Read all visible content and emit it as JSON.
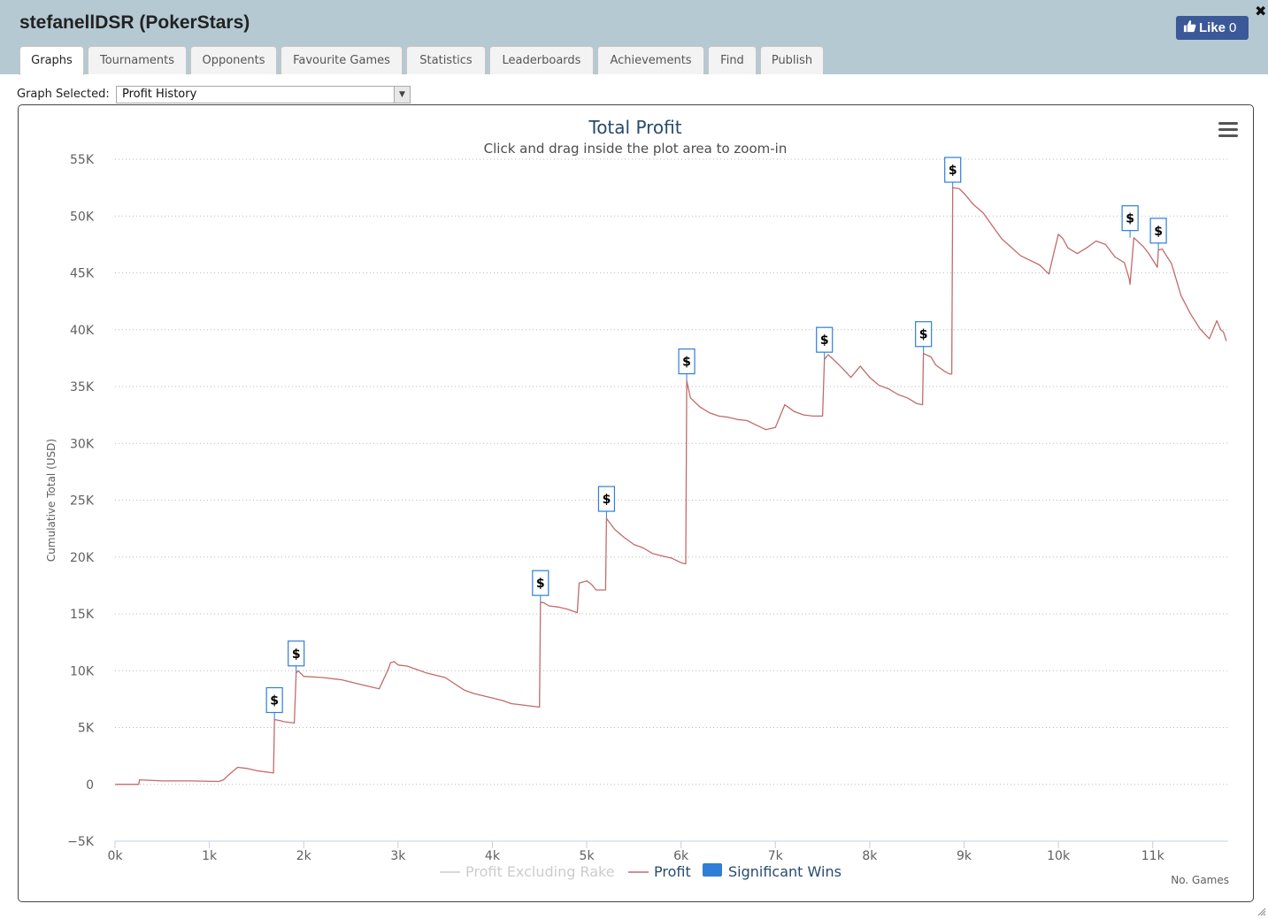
{
  "header": {
    "title": "stefanellDSR (PokerStars)",
    "close_icon": "close-icon",
    "like": {
      "label": "Like",
      "count": "0",
      "icon": "thumbs-up-icon"
    }
  },
  "tabs": [
    {
      "label": "Graphs",
      "active": true
    },
    {
      "label": "Tournaments"
    },
    {
      "label": "Opponents"
    },
    {
      "label": "Favourite Games"
    },
    {
      "label": "Statistics"
    },
    {
      "label": "Leaderboards"
    },
    {
      "label": "Achievements"
    },
    {
      "label": "Find"
    },
    {
      "label": "Publish"
    }
  ],
  "graph_selector": {
    "label": "Graph Selected:",
    "value": "Profit History"
  },
  "colors": {
    "header_bg": "#b5c9d2",
    "profit_line": "#c26b6b",
    "significant_wins": "#2f7ed8",
    "profit_excluding_rake": "#cccccc",
    "title": "#274b6d",
    "like_bg": "#3b5998"
  },
  "menu_icon": "hamburger-menu-icon",
  "chart_data": {
    "type": "line",
    "title": "Total Profit",
    "subtitle": "Click and drag inside the plot area to zoom-in",
    "ylabel": "Cumulative Total (USD)",
    "xlabel": "No. Games",
    "ylim": [
      -5000,
      55000
    ],
    "xlim": [
      0,
      11800
    ],
    "x_ticks": [
      0,
      1000,
      2000,
      3000,
      4000,
      5000,
      6000,
      7000,
      8000,
      9000,
      10000,
      11000
    ],
    "x_tick_labels": [
      "0k",
      "1k",
      "2k",
      "3k",
      "4k",
      "5k",
      "6k",
      "7k",
      "8k",
      "9k",
      "10k",
      "11k"
    ],
    "y_ticks": [
      -5000,
      0,
      5000,
      10000,
      15000,
      20000,
      25000,
      30000,
      35000,
      40000,
      45000,
      50000,
      55000
    ],
    "y_tick_labels": [
      "−5K",
      "0",
      "5K",
      "10K",
      "15K",
      "20K",
      "25K",
      "30K",
      "35K",
      "40K",
      "45K",
      "50K",
      "55K"
    ],
    "grid": "horizontal dotted",
    "legend": [
      {
        "name": "Profit Excluding Rake",
        "hidden": true
      },
      {
        "name": "Profit"
      },
      {
        "name": "Significant Wins"
      }
    ],
    "legend_position": "bottom-center",
    "series": [
      {
        "name": "Profit",
        "x": [
          0,
          250,
          260,
          500,
          800,
          1100,
          1150,
          1200,
          1300,
          1400,
          1500,
          1680,
          1690,
          1750,
          1800,
          1900,
          1920,
          1940,
          2000,
          2200,
          2400,
          2600,
          2800,
          2900,
          2920,
          2960,
          3000,
          3100,
          3200,
          3300,
          3500,
          3700,
          3800,
          4000,
          4100,
          4200,
          4400,
          4500,
          4510,
          4540,
          4600,
          4700,
          4800,
          4900,
          4920,
          5000,
          5050,
          5100,
          5200,
          5210,
          5300,
          5400,
          5500,
          5600,
          5700,
          5800,
          5900,
          6000,
          6050,
          6060,
          6100,
          6200,
          6300,
          6400,
          6500,
          6600,
          6700,
          6800,
          6900,
          7000,
          7100,
          7200,
          7300,
          7400,
          7500,
          7520,
          7560,
          7600,
          7700,
          7800,
          7900,
          8000,
          8100,
          8200,
          8300,
          8400,
          8500,
          8560,
          8570,
          8650,
          8700,
          8800,
          8850,
          8870,
          8880,
          8950,
          9000,
          9100,
          9200,
          9400,
          9600,
          9800,
          9900,
          9950,
          10000,
          10050,
          10100,
          10200,
          10300,
          10400,
          10500,
          10600,
          10700,
          10750,
          10760,
          10800,
          10900,
          10950,
          11050,
          11060,
          11100,
          11200,
          11300,
          11400,
          11500,
          11600,
          11680,
          11720,
          11750,
          11780
        ],
        "y": [
          0,
          0,
          400,
          300,
          300,
          250,
          400,
          800,
          1500,
          1400,
          1200,
          1000,
          5700,
          5600,
          5500,
          5400,
          9800,
          10000,
          9500,
          9400,
          9200,
          8800,
          8400,
          10200,
          10700,
          10800,
          10500,
          10400,
          10100,
          9800,
          9400,
          8300,
          8000,
          7600,
          7400,
          7100,
          6900,
          6800,
          16000,
          16000,
          15700,
          15600,
          15400,
          15100,
          17700,
          17900,
          17600,
          17100,
          17100,
          23400,
          22400,
          21700,
          21100,
          20800,
          20300,
          20100,
          19900,
          19500,
          19400,
          35500,
          34000,
          33200,
          32700,
          32400,
          32300,
          32100,
          32000,
          31600,
          31200,
          31400,
          33400,
          32800,
          32500,
          32400,
          32400,
          37400,
          37800,
          37500,
          36700,
          35800,
          36800,
          35800,
          35100,
          34800,
          34300,
          34000,
          33500,
          33400,
          37900,
          37600,
          36900,
          36300,
          36100,
          36100,
          52500,
          52400,
          52000,
          51000,
          50300,
          48000,
          46500,
          45700,
          44900,
          46700,
          48400,
          48000,
          47200,
          46700,
          47200,
          47800,
          47500,
          46400,
          45900,
          44500,
          44000,
          48100,
          47300,
          46800,
          45500,
          47000,
          47100,
          45800,
          43000,
          41400,
          40100,
          39200,
          40800,
          40000,
          39800,
          39000
        ]
      },
      {
        "name": "Significant Wins",
        "marker": "$",
        "x": [
          1690,
          1920,
          4510,
          5210,
          6060,
          7520,
          8570,
          8880,
          10760,
          11060
        ],
        "y": [
          5700,
          9800,
          16000,
          23400,
          35500,
          37400,
          37900,
          52500,
          48100,
          47000
        ]
      }
    ]
  }
}
